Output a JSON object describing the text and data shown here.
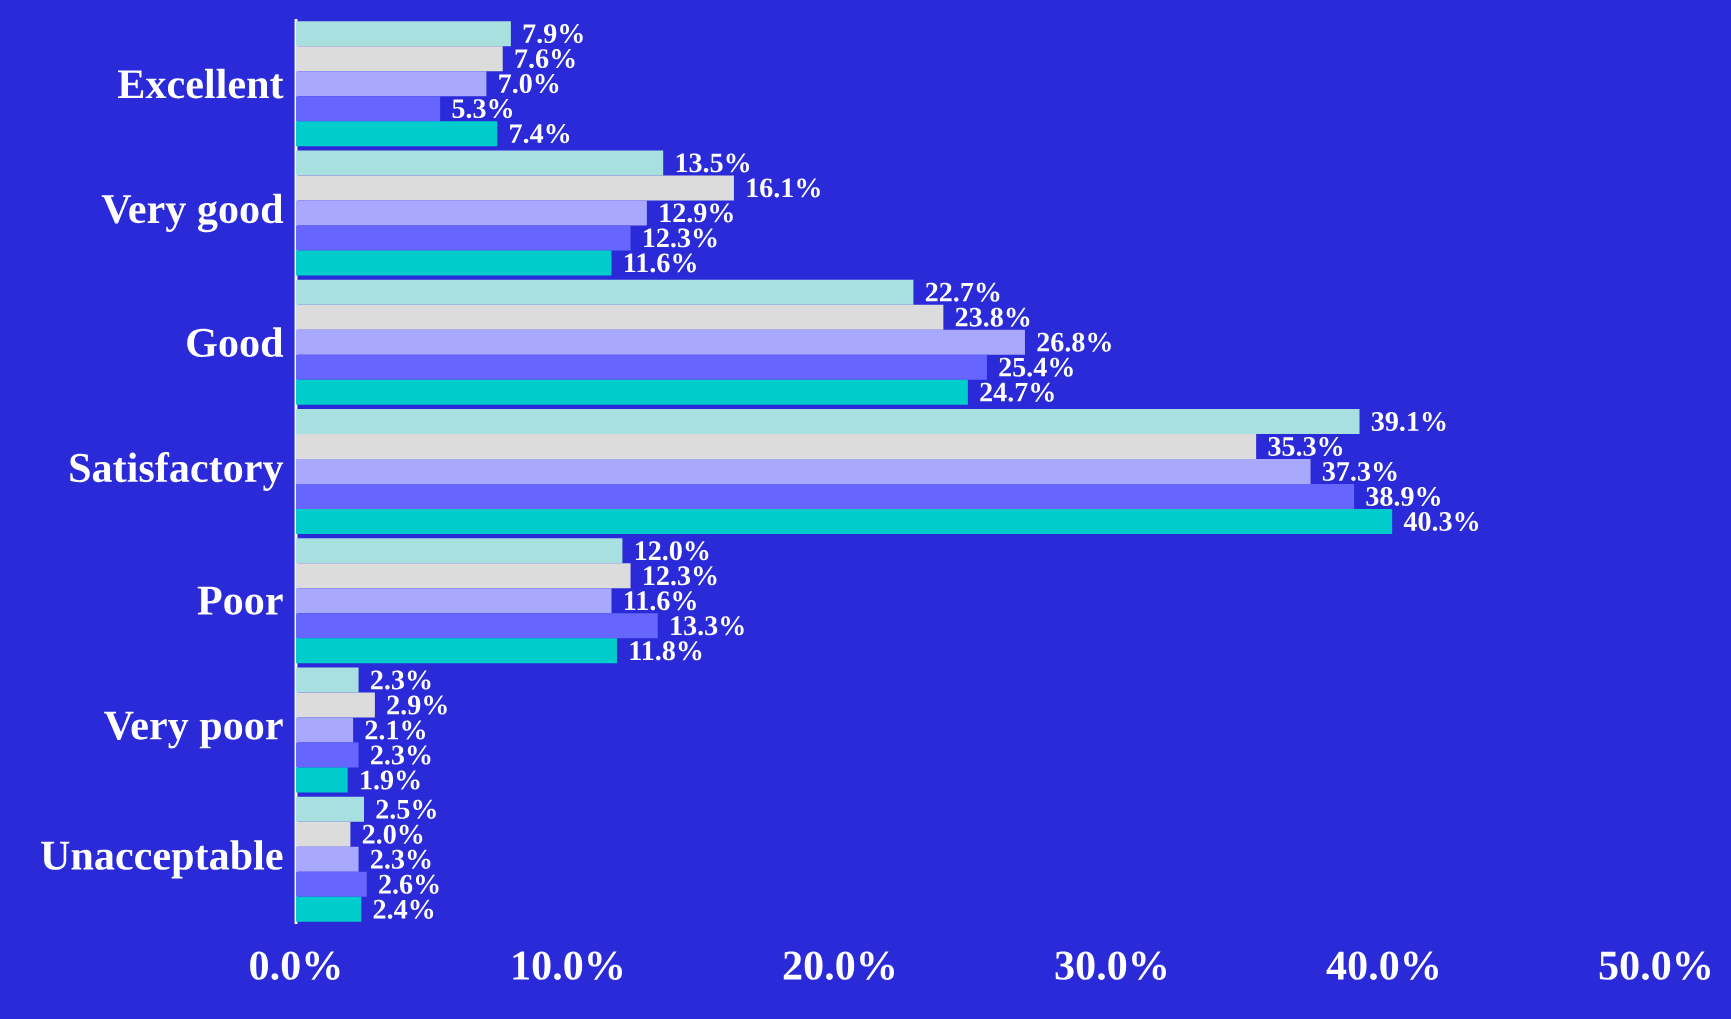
{
  "chart_data": {
    "type": "bar",
    "orientation": "horizontal",
    "categories": [
      "Excellent",
      "Very good",
      "Good",
      "Satisfactory",
      "Poor",
      "Very poor",
      "Unacceptable"
    ],
    "series": [
      {
        "color": "#a8e0e0",
        "values": [
          7.9,
          13.5,
          22.7,
          39.1,
          12.0,
          2.3,
          2.5
        ],
        "value_labels": [
          "7.9%",
          "13.5%",
          "22.7%",
          "39.1%",
          "12.0%",
          "2.3%",
          "2.5%"
        ]
      },
      {
        "color": "#dcdcdc",
        "values": [
          7.6,
          16.1,
          23.8,
          35.3,
          12.3,
          2.9,
          2.0
        ],
        "value_labels": [
          "7.6%",
          "16.1%",
          "23.8%",
          "35.3%",
          "12.3%",
          "2.9%",
          "2.0%"
        ]
      },
      {
        "color": "#a8a8ff",
        "values": [
          7.0,
          12.9,
          26.8,
          37.3,
          11.6,
          2.1,
          2.3
        ],
        "value_labels": [
          "7.0%",
          "12.9%",
          "26.8%",
          "37.3%",
          "11.6%",
          "2.1%",
          "2.3%"
        ]
      },
      {
        "color": "#6666ff",
        "values": [
          5.3,
          12.3,
          25.4,
          38.9,
          13.3,
          2.3,
          2.6
        ],
        "value_labels": [
          "5.3%",
          "12.3%",
          "25.4%",
          "38.9%",
          "13.3%",
          "2.3%",
          "2.6%"
        ]
      },
      {
        "color": "#00cccc",
        "values": [
          7.4,
          11.6,
          24.7,
          40.3,
          11.8,
          1.9,
          2.4
        ],
        "value_labels": [
          "7.4%",
          "11.6%",
          "24.7%",
          "40.3%",
          "11.8%",
          "1.9%",
          "2.4%"
        ]
      }
    ],
    "xlim": [
      0,
      50
    ],
    "xticks": [
      {
        "value": 0,
        "label": "0.0%"
      },
      {
        "value": 10,
        "label": "10.0%"
      },
      {
        "value": 20,
        "label": "20.0%"
      },
      {
        "value": 30,
        "label": "30.0%"
      },
      {
        "value": 40,
        "label": "40.0%"
      },
      {
        "value": 50,
        "label": "50.0%"
      }
    ]
  }
}
